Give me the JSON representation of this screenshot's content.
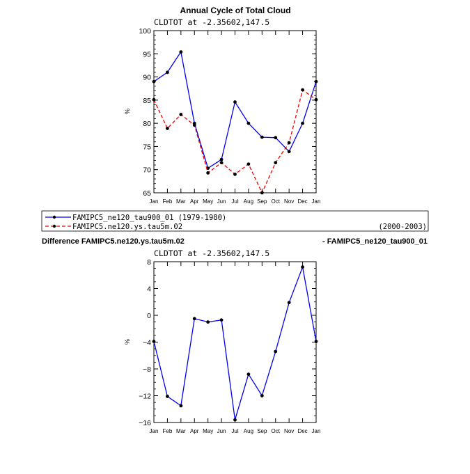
{
  "chart_data": [
    {
      "type": "line",
      "title": "Annual Cycle of Total Cloud",
      "subtitle": "CLDTOT at -2.35602,147.5",
      "xlabel": "",
      "ylabel": "%",
      "categories": [
        "Jan",
        "Feb",
        "Mar",
        "Apr",
        "May",
        "Jun",
        "Jul",
        "Aug",
        "Sep",
        "Oct",
        "Nov",
        "Dec",
        "Jan"
      ],
      "ylim": [
        65,
        100
      ],
      "yticks": [
        "65",
        "70",
        "75",
        "80",
        "85",
        "90",
        "95",
        "100"
      ],
      "series": [
        {
          "name": "FAMIPC5_ne120_tau900_01 (1979-1980)",
          "color": "#0000ee",
          "dash": false,
          "values": [
            89.0,
            91.0,
            95.4,
            80.0,
            70.3,
            72.2,
            84.6,
            80.0,
            77.0,
            76.9,
            73.9,
            80.0,
            89.0
          ]
        },
        {
          "name": "FAMIPC5.ne120.ys.tau5m.02",
          "color": "#ee0000",
          "dash": true,
          "values": [
            85.1,
            78.9,
            81.9,
            79.6,
            69.3,
            71.5,
            69.0,
            71.2,
            65.0,
            71.5,
            75.8,
            87.2,
            85.1
          ]
        }
      ]
    },
    {
      "type": "line",
      "title": "",
      "subtitle": "CLDTOT at -2.35602,147.5",
      "xlabel": "",
      "ylabel": "%",
      "categories": [
        "Jan",
        "Feb",
        "Mar",
        "Apr",
        "May",
        "Jun",
        "Jul",
        "Aug",
        "Sep",
        "Oct",
        "Nov",
        "Dec",
        "Jan"
      ],
      "ylim": [
        -16,
        8
      ],
      "yticks": [
        "-16",
        "-12",
        "-8",
        "-4",
        "0",
        "4",
        "8"
      ],
      "series": [
        {
          "name": "Difference",
          "color": "#0000ee",
          "dash": false,
          "values": [
            -3.9,
            -12.1,
            -13.5,
            -0.5,
            -1.0,
            -0.7,
            -15.6,
            -8.8,
            -12.0,
            -5.4,
            1.9,
            7.2,
            -3.9
          ]
        }
      ]
    }
  ],
  "legend": {
    "row1_label": "FAMIPC5_ne120_tau900_01 (1979-1980)",
    "row2_label": "FAMIPC5.ne120.ys.tau5m.02",
    "row2_years": "(2000-2003)"
  },
  "difference_header": {
    "left": "Difference FAMIPC5.ne120.ys.tau5m.02",
    "right": "- FAMIPC5_ne120_tau900_01"
  }
}
